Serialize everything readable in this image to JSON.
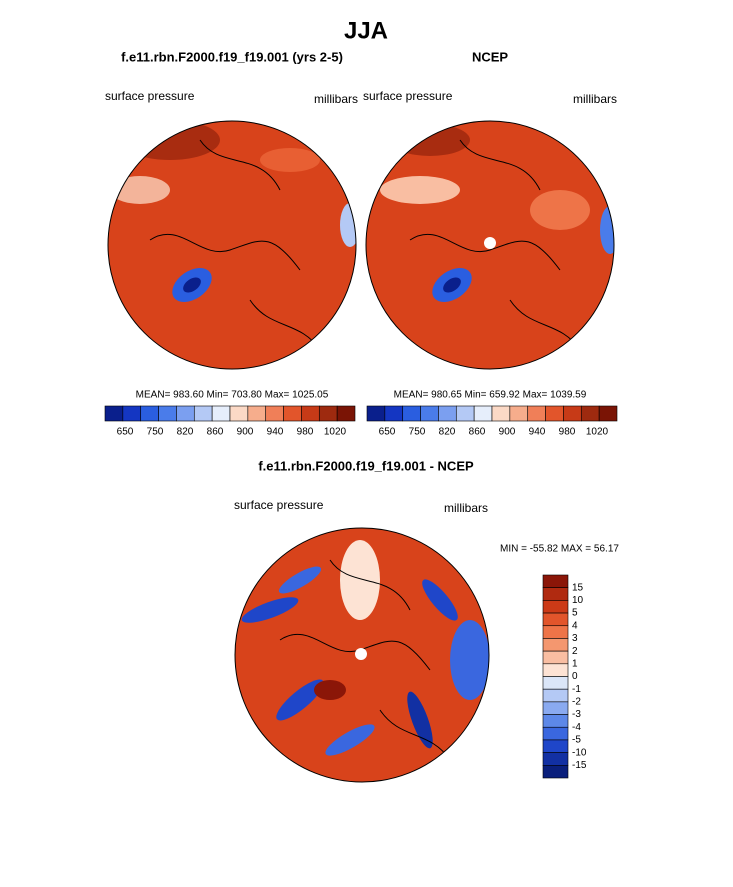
{
  "title": "JJA",
  "panels": [
    {
      "title": "f.e11.rbn.F2000.f19_f19.001 (yrs 2-5)",
      "left_label": "surface pressure",
      "right_label": "millibars",
      "stats": "MEAN= 983.60  Min= 703.80  Max= 1025.05"
    },
    {
      "title": "NCEP",
      "left_label": "surface pressure",
      "right_label": "millibars",
      "stats": "MEAN= 980.65  Min= 659.92  Max= 1039.59"
    }
  ],
  "abs_colorbar": {
    "labels": [
      "650",
      "750",
      "820",
      "860",
      "900",
      "940",
      "980",
      "1020"
    ],
    "colors": [
      "#0a1f8c",
      "#1436c2",
      "#2a5ee0",
      "#4a7cea",
      "#7b9ff0",
      "#b4c9f5",
      "#e6eefb",
      "#fbd9c6",
      "#f6ad8c",
      "#f07f58",
      "#e2552b",
      "#c73a17",
      "#9e2a0f",
      "#7a1405"
    ]
  },
  "diff_panel": {
    "title": "f.e11.rbn.F2000.f19_f19.001 - NCEP",
    "left_label": "surface pressure",
    "right_label": "millibars",
    "stats": "MIN = -55.82 MAX =  56.17",
    "colorbar": {
      "labels": [
        "15",
        "10",
        "5",
        "4",
        "3",
        "2",
        "1",
        "0",
        "-1",
        "-2",
        "-3",
        "-4",
        "-5",
        "-10",
        "-15"
      ],
      "colors": [
        "#8b1608",
        "#b02a10",
        "#cc3a17",
        "#e2552b",
        "#ee7448",
        "#f4976f",
        "#f9bea2",
        "#fde3d4",
        "#dbe6f8",
        "#b4c9f5",
        "#8aaaf0",
        "#5d88e8",
        "#3a67df",
        "#1f46c9",
        "#1230a3",
        "#0a1f7c"
      ]
    }
  }
}
